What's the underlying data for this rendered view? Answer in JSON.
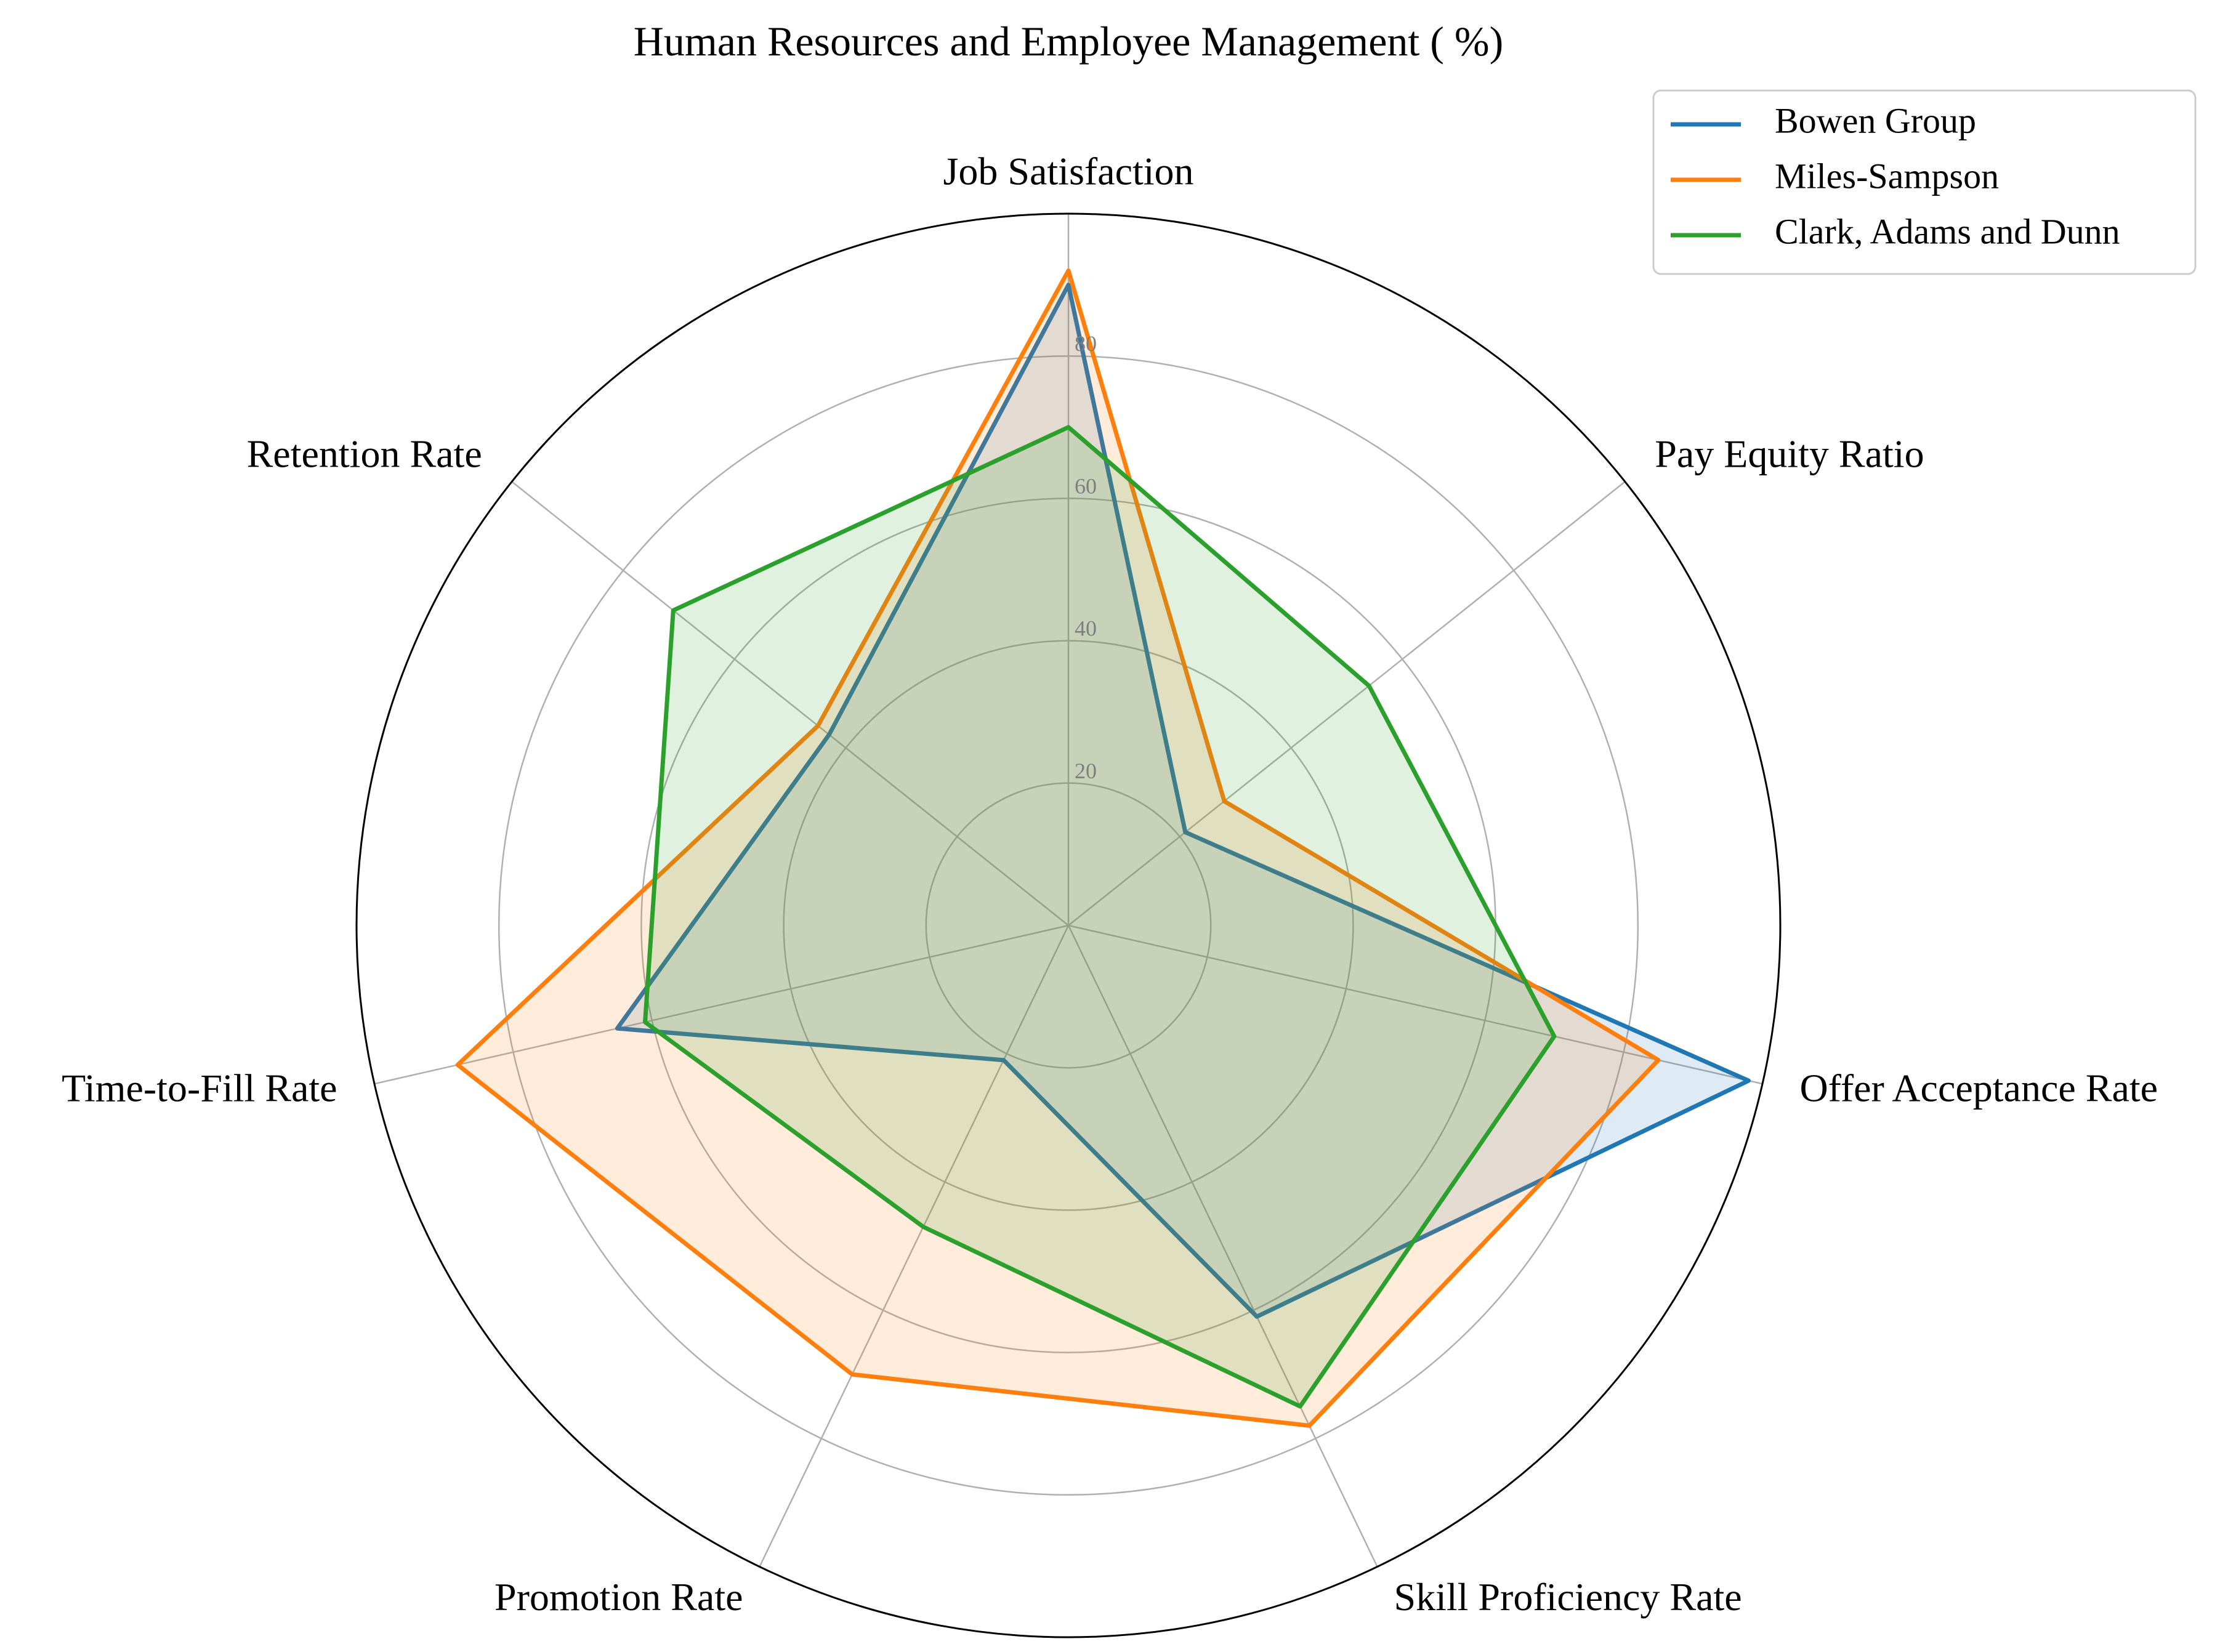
{
  "chart_data": {
    "type": "radar",
    "title": "Human Resources and Employee Management ( %)",
    "categories": [
      "Job Satisfaction",
      "Pay Equity Ratio",
      "Offer Acceptance Rate",
      "Skill Proficiency Rate",
      "Promotion Rate",
      "Time-to-Fill Rate",
      "Retention Rate"
    ],
    "r_ticks": [
      20,
      40,
      60,
      80
    ],
    "r_tick_labels": [
      "20",
      "40",
      "60",
      "80"
    ],
    "rlim": [
      0,
      100
    ],
    "grid": true,
    "legend_position": "top-right",
    "series": [
      {
        "name": "Bowen Group",
        "color": "#1f77b4",
        "values": [
          90,
          21,
          98,
          61,
          21,
          65,
          43
        ]
      },
      {
        "name": "Miles-Sampson",
        "color": "#ff7f0e",
        "values": [
          92,
          28,
          85,
          78,
          70,
          88,
          45
        ]
      },
      {
        "name": "Clark, Adams and Dunn",
        "color": "#2ca02c",
        "values": [
          70,
          54,
          70,
          75,
          47,
          61,
          71
        ]
      }
    ]
  }
}
